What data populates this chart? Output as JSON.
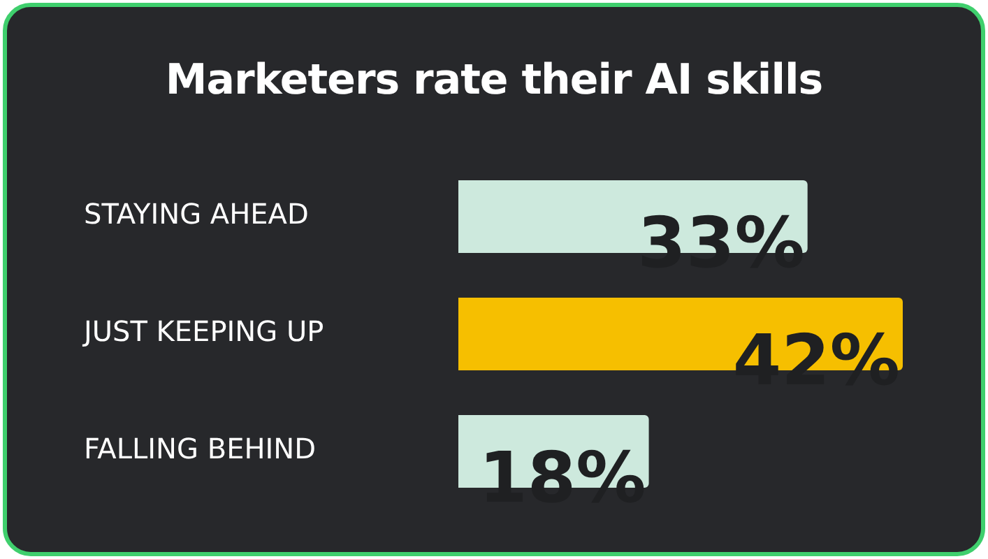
{
  "chart_data": {
    "type": "bar",
    "orientation": "horizontal",
    "title": "Marketers rate their AI skills",
    "categories": [
      "STAYING AHEAD",
      "JUST KEEPING UP",
      "FALLING BEHIND"
    ],
    "values": [
      33,
      42,
      18
    ],
    "colors": [
      "#cde9dd",
      "#f6bf00",
      "#cde9dd"
    ],
    "value_labels": [
      "33%",
      "42%",
      "18%"
    ]
  }
}
